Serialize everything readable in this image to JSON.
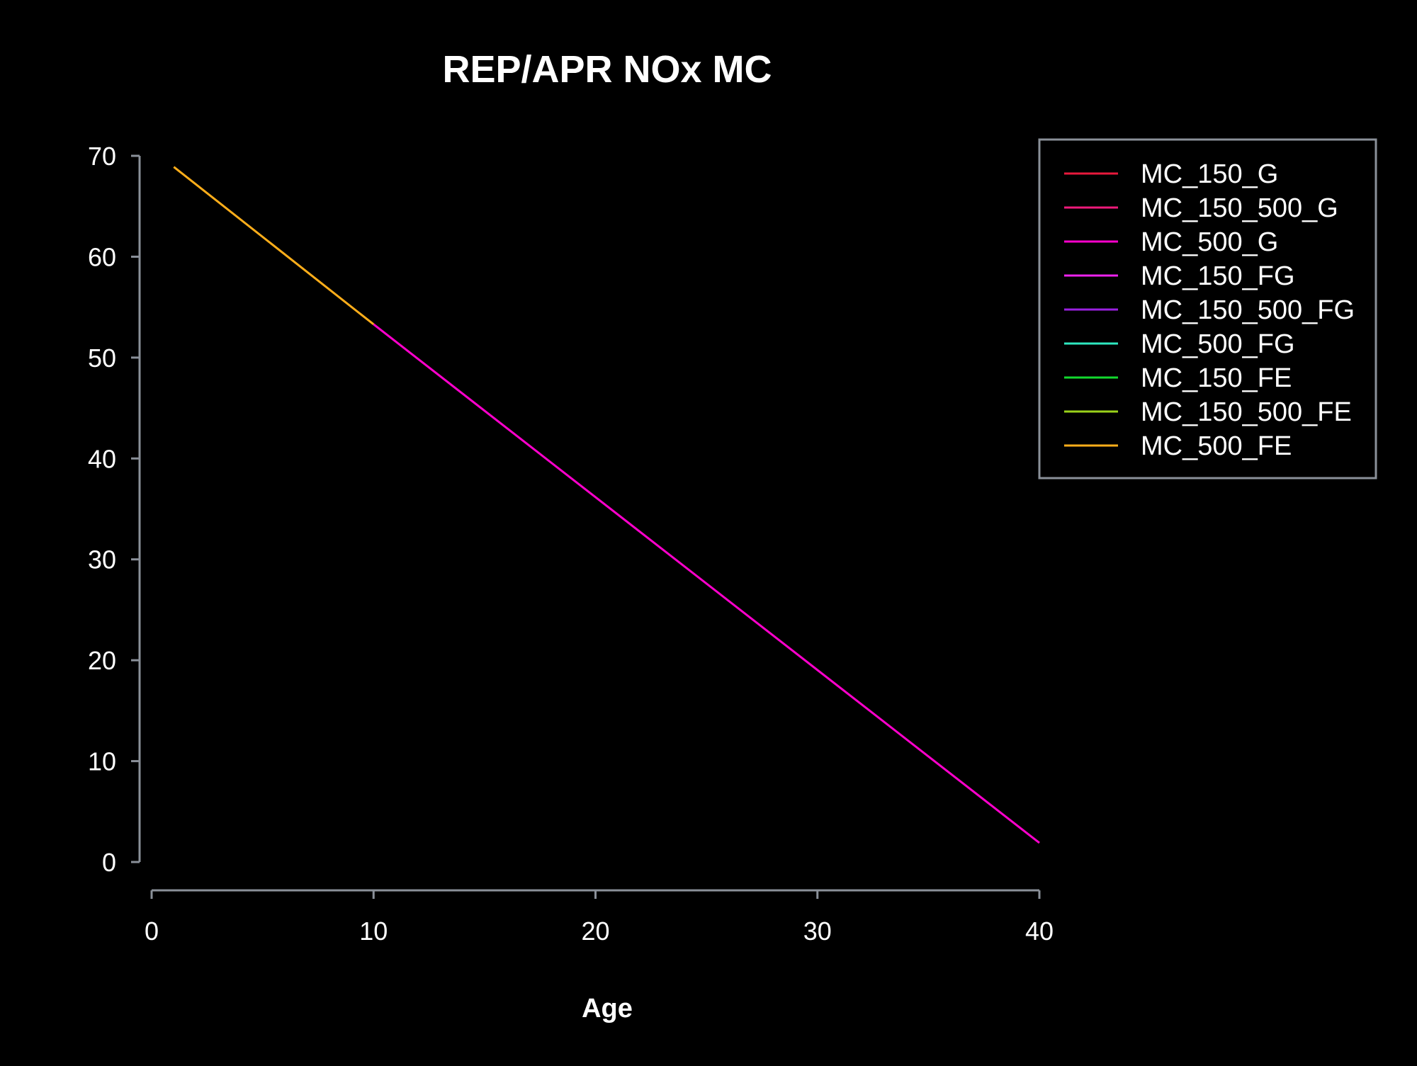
{
  "chart_data": {
    "type": "line",
    "title": "REP/APR NOx  MC",
    "xlabel": "Age",
    "ylabel": "",
    "xlim": [
      0,
      40
    ],
    "ylim": [
      0,
      70
    ],
    "x_ticks": [
      0,
      10,
      20,
      30,
      40
    ],
    "y_ticks": [
      0,
      10,
      20,
      30,
      40,
      50,
      60,
      70
    ],
    "grid": false,
    "legend_position": "top-right",
    "background": "#000000",
    "text_color": "#ffffff",
    "axis_color": "#8a9099",
    "series": [
      {
        "name": "MC_150_G",
        "color": "#e8193c",
        "x": [],
        "y": []
      },
      {
        "name": "MC_150_500_G",
        "color": "#ee1a7a",
        "x": [],
        "y": []
      },
      {
        "name": "MC_500_G",
        "color": "#ff00cc",
        "x": [
          10,
          40
        ],
        "y": [
          53.3,
          1.9
        ]
      },
      {
        "name": "MC_150_FG",
        "color": "#ee22ee",
        "x": [],
        "y": []
      },
      {
        "name": "MC_150_500_FG",
        "color": "#9a20e0",
        "x": [],
        "y": []
      },
      {
        "name": "MC_500_FG",
        "color": "#2ee8c0",
        "x": [],
        "y": []
      },
      {
        "name": "MC_150_FE",
        "color": "#12d92e",
        "x": [],
        "y": []
      },
      {
        "name": "MC_150_500_FE",
        "color": "#9ad21a",
        "x": [],
        "y": []
      },
      {
        "name": "MC_500_FE",
        "color": "#ffae1a",
        "x": [
          1,
          10
        ],
        "y": [
          68.9,
          53.3
        ]
      }
    ]
  }
}
